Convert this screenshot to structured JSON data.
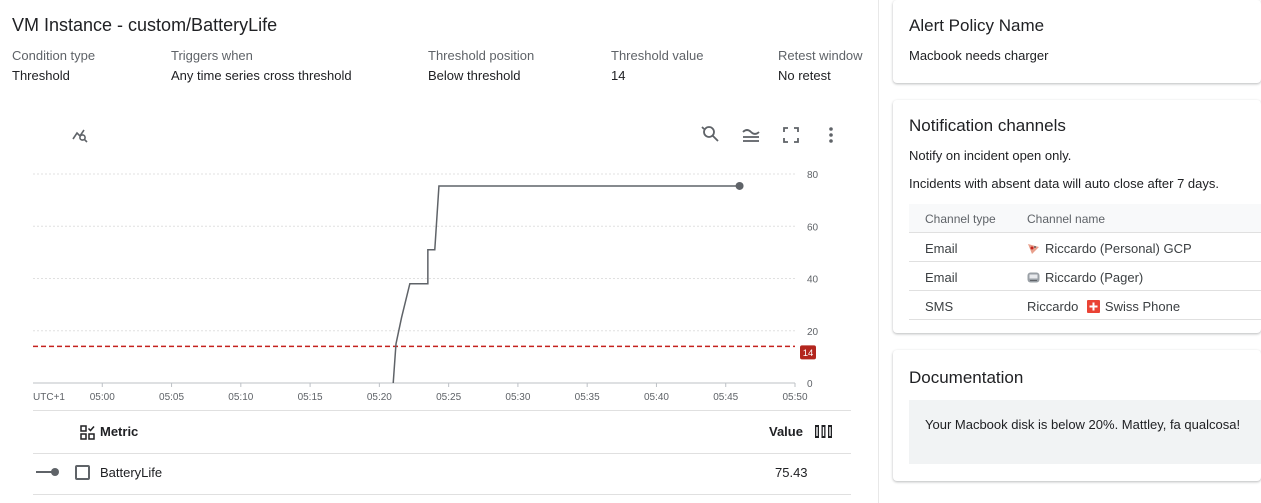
{
  "page_title": "VM Instance - custom/BatteryLife",
  "conditions": [
    {
      "label": "Condition type",
      "value": "Threshold"
    },
    {
      "label": "Triggers when",
      "value": "Any time series cross threshold"
    },
    {
      "label": "Threshold position",
      "value": "Below threshold"
    },
    {
      "label": "Threshold value",
      "value": "14"
    },
    {
      "label": "Retest window",
      "value": "No retest"
    }
  ],
  "toolbar_icons": [
    "chart-explore-icon",
    "zoom-reset-icon",
    "legend-toggle-icon",
    "fullscreen-icon",
    "more-vert-icon"
  ],
  "chart_data": {
    "type": "line",
    "x_tick_labels": [
      "UTC+1",
      "05:00",
      "05:05",
      "05:10",
      "05:15",
      "05:20",
      "05:25",
      "05:30",
      "05:35",
      "05:40",
      "05:45",
      "05:50"
    ],
    "x_range_minutes": [
      0,
      55
    ],
    "ylim": [
      0,
      80
    ],
    "y_ticks": [
      0,
      20,
      40,
      60,
      80
    ],
    "grid": true,
    "series": [
      {
        "name": "BatteryLife",
        "color": "#5f6368",
        "points": [
          {
            "x": "05:21.0",
            "y": 0
          },
          {
            "x": "05:21.2",
            "y": 15
          },
          {
            "x": "05:21.6",
            "y": 25
          },
          {
            "x": "05:22.2",
            "y": 38
          },
          {
            "x": "05:23.5",
            "y": 38
          },
          {
            "x": "05:23.5",
            "y": 51
          },
          {
            "x": "05:24.0",
            "y": 51
          },
          {
            "x": "05:24.3",
            "y": 75.43
          },
          {
            "x": "05:46.0",
            "y": 75.43
          }
        ]
      }
    ],
    "threshold": {
      "value": 14,
      "label": "14",
      "color": "#c5221f"
    }
  },
  "metric_table": {
    "header_metric": "Metric",
    "header_value": "Value",
    "rows": [
      {
        "metric": "BatteryLife",
        "value": "75.43"
      }
    ]
  },
  "alert_policy": {
    "title": "Alert Policy Name",
    "name": "Macbook needs charger"
  },
  "notification": {
    "title": "Notification channels",
    "line1": "Notify on incident open only.",
    "line2": "Incidents with absent data will auto close after 7 days.",
    "col_type": "Channel type",
    "col_name": "Channel name",
    "channels": [
      {
        "type": "Email",
        "name": "Riccardo (Personal) GCP",
        "icon": "email-channel-icon"
      },
      {
        "type": "Email",
        "name": "Riccardo (Pager)",
        "icon": "pager-icon"
      },
      {
        "type": "SMS",
        "name_prefix": "Riccardo",
        "name": "Swiss Phone",
        "icon": "swiss-flag-icon"
      }
    ]
  },
  "documentation": {
    "title": "Documentation",
    "text": "Your Macbook disk is below 20%. Mattley, fa qualcosa!"
  }
}
